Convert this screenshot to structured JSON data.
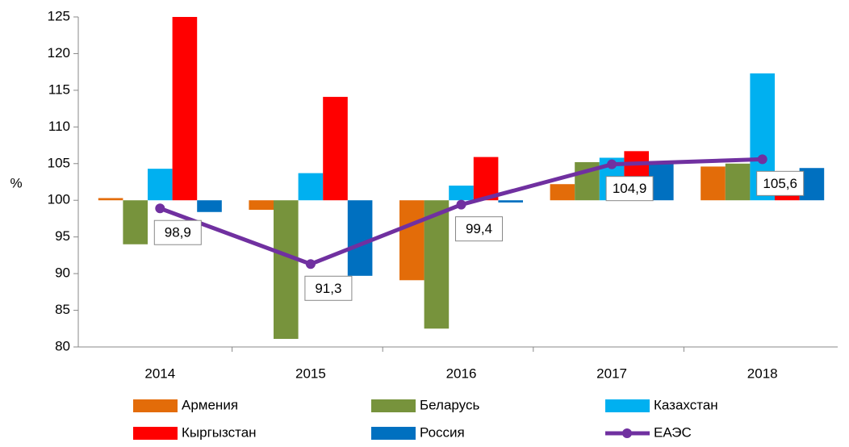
{
  "chart_data": {
    "type": "bar",
    "y_label": "%",
    "categories": [
      "2014",
      "2015",
      "2016",
      "2017",
      "2018"
    ],
    "baseline": 100,
    "ylim": [
      80,
      125
    ],
    "yticks": [
      80,
      85,
      90,
      95,
      100,
      105,
      110,
      115,
      120,
      125
    ],
    "grid": false,
    "legend": "bottom",
    "series": [
      {
        "name": "Армения",
        "color": "#e36c09",
        "values": [
          100.3,
          98.7,
          89.1,
          102.2,
          104.6
        ]
      },
      {
        "name": "Беларусь",
        "color": "#77933c",
        "values": [
          94.0,
          81.1,
          82.5,
          105.2,
          105.0
        ]
      },
      {
        "name": "Казахстан",
        "color": "#00b0f0",
        "values": [
          104.3,
          103.7,
          102.0,
          105.8,
          117.3
        ]
      },
      {
        "name": "Кыргызстан",
        "color": "#ff0000",
        "values": [
          125,
          114.1,
          105.9,
          106.7,
          103.0
        ]
      },
      {
        "name": "Россия",
        "color": "#0070c0",
        "values": [
          98.4,
          89.7,
          99.7,
          105.0,
          104.4
        ]
      },
      {
        "name": "ЕАЭС",
        "type": "line",
        "color": "#7030a0",
        "values": [
          98.9,
          91.3,
          99.4,
          104.9,
          105.6
        ],
        "value_labels": [
          "98,9",
          "91,3",
          "99,4",
          "104,9",
          "105,6"
        ]
      }
    ]
  }
}
